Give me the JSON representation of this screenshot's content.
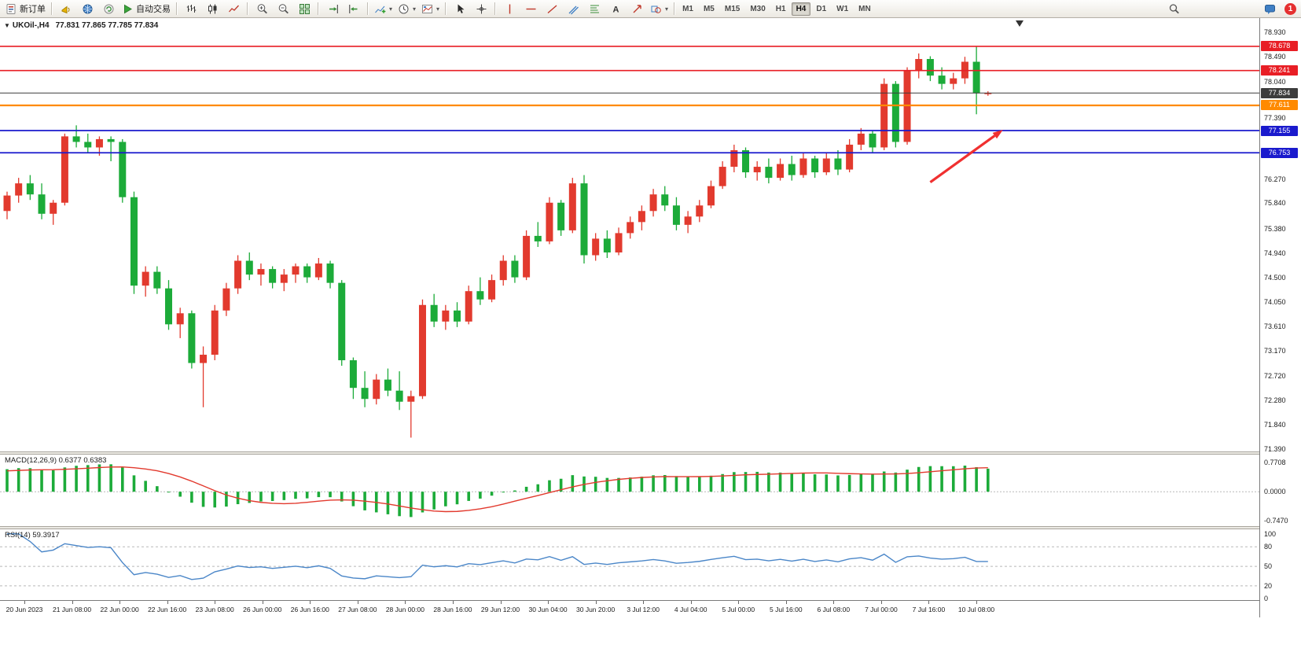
{
  "toolbar": {
    "left_items": [
      {
        "name": "new-order-button",
        "icon": "new-order",
        "label": "新订单"
      },
      {
        "name": "separator"
      },
      {
        "name": "megaphone-icon",
        "icon": "megaphone"
      },
      {
        "name": "community-icon",
        "icon": "globe"
      },
      {
        "name": "refresh-icon",
        "icon": "refresh"
      },
      {
        "name": "autotrading-button",
        "icon": "autotrading",
        "label": "自动交易"
      },
      {
        "name": "separator"
      },
      {
        "name": "bar-chart-button",
        "icon": "bar-chart"
      },
      {
        "name": "candlestick-chart-button",
        "icon": "candlestick"
      },
      {
        "name": "line-chart-button",
        "icon": "line-chart"
      },
      {
        "name": "separator"
      },
      {
        "name": "zoom-in-button",
        "icon": "zoom-in"
      },
      {
        "name": "zoom-out-button",
        "icon": "zoom-out"
      },
      {
        "name": "tile-windows-button",
        "icon": "tile-windows"
      },
      {
        "name": "separator"
      },
      {
        "name": "auto-scroll-button",
        "icon": "auto-scroll"
      },
      {
        "name": "chart-shift-button",
        "icon": "chart-shift"
      },
      {
        "name": "separator"
      },
      {
        "name": "indicators-button",
        "icon": "indicators",
        "dropdown": true
      },
      {
        "name": "periods-button",
        "icon": "periods",
        "dropdown": true
      },
      {
        "name": "templates-button",
        "icon": "templates",
        "dropdown": true
      },
      {
        "name": "separator"
      },
      {
        "name": "cursor-button",
        "icon": "cursor"
      },
      {
        "name": "crosshair-button",
        "icon": "crosshair"
      },
      {
        "name": "separator"
      },
      {
        "name": "vertical-line-button",
        "icon": "vline"
      },
      {
        "name": "horizontal-line-button",
        "icon": "hline"
      },
      {
        "name": "trendline-button",
        "icon": "trendline"
      },
      {
        "name": "channel-button",
        "icon": "channel"
      },
      {
        "name": "fibonacci-button",
        "icon": "fibonacci"
      },
      {
        "name": "text-button",
        "icon": "text-label"
      },
      {
        "name": "arrows-button",
        "icon": "arrows"
      },
      {
        "name": "shapes-button",
        "icon": "shapes",
        "dropdown": true
      },
      {
        "name": "separator"
      }
    ],
    "timeframes": [
      "M1",
      "M5",
      "M15",
      "M30",
      "H1",
      "H4",
      "D1",
      "W1",
      "MN"
    ],
    "active_timeframe": "H4",
    "right_items": [
      {
        "name": "search-button",
        "icon": "search"
      },
      {
        "name": "chat-button",
        "icon": "chat"
      }
    ],
    "notification_count": "1"
  },
  "chart": {
    "symbol_label": "UKOil-,H4",
    "ohlc_text": "77.831 77.865 77.785 77.834"
  },
  "macd": {
    "label": "MACD(12,26,9) 0.6377 0.6383",
    "axis": [
      {
        "v": 0.7708,
        "t": "0.7708"
      },
      {
        "v": 0,
        "t": "0.0000"
      },
      {
        "v": -0.747,
        "t": "-0.7470"
      }
    ]
  },
  "rsi": {
    "label": "RSI(14) 59.3917",
    "axis": [
      {
        "v": 100,
        "t": "100"
      },
      {
        "v": 80,
        "t": "80"
      },
      {
        "v": 50,
        "t": "50"
      },
      {
        "v": 20,
        "t": "20"
      },
      {
        "v": 0,
        "t": "0"
      }
    ],
    "levels": [
      80,
      50,
      20
    ]
  },
  "chart_data": {
    "type": "candlestick",
    "symbol": "UKOil-",
    "timeframe": "H4",
    "current_ohlc": {
      "open": 77.831,
      "high": 77.865,
      "low": 77.785,
      "close": 77.834
    },
    "up_color": "#e23a2e",
    "down_color": "#1cab39",
    "price_ylim": [
      71.35,
      79.19
    ],
    "macd_ylim": [
      -0.9,
      0.97
    ],
    "rsi_ylim": [
      -2,
      107
    ],
    "y_axis_labels": [
      "78.930",
      "78.490",
      "78.040",
      "77.390",
      "76.270",
      "75.840",
      "75.380",
      "74.940",
      "74.500",
      "74.050",
      "73.610",
      "73.170",
      "72.720",
      "72.280",
      "71.840",
      "71.390"
    ],
    "x_labels": [
      "20 Jun 2023",
      "21 Jun 08:00",
      "22 Jun 00:00",
      "22 Jun 16:00",
      "23 Jun 08:00",
      "26 Jun 00:00",
      "26 Jun 16:00",
      "27 Jun 08:00",
      "28 Jun 00:00",
      "28 Jun 16:00",
      "29 Jun 12:00",
      "30 Jun 04:00",
      "30 Jun 20:00",
      "3 Jul 12:00",
      "4 Jul 04:00",
      "5 Jul 00:00",
      "5 Jul 16:00",
      "6 Jul 08:00",
      "7 Jul 00:00",
      "7 Jul 16:00",
      "10 Jul 08:00"
    ],
    "levels": [
      {
        "price": 78.678,
        "label": "78.678",
        "color": "#e81e25",
        "width": 1.6
      },
      {
        "price": 78.241,
        "label": "78.241",
        "color": "#e81e25",
        "width": 1.6
      },
      {
        "price": 77.834,
        "label": "77.834",
        "color": "#3c3c3c",
        "width": 1,
        "current": true
      },
      {
        "price": 77.611,
        "label": "77.611",
        "color": "#ff8a00",
        "width": 2.2
      },
      {
        "price": 77.155,
        "label": "77.155",
        "color": "#1a1acd",
        "width": 1.8
      },
      {
        "price": 76.753,
        "label": "76.753",
        "color": "#1a1acd",
        "width": 1.8
      }
    ],
    "candles": [
      [
        75.7,
        76.05,
        75.55,
        75.98
      ],
      [
        75.98,
        76.3,
        75.85,
        76.2
      ],
      [
        76.2,
        76.35,
        75.9,
        76.0
      ],
      [
        76.0,
        76.2,
        75.55,
        75.65
      ],
      [
        75.65,
        75.9,
        75.45,
        75.85
      ],
      [
        75.85,
        77.1,
        75.8,
        77.05
      ],
      [
        77.05,
        77.25,
        76.85,
        76.95
      ],
      [
        76.95,
        77.1,
        76.75,
        76.85
      ],
      [
        76.85,
        77.05,
        76.7,
        77.0
      ],
      [
        77.0,
        77.05,
        76.6,
        76.95
      ],
      [
        76.95,
        77.0,
        75.85,
        75.95
      ],
      [
        75.95,
        76.05,
        74.2,
        74.35
      ],
      [
        74.35,
        74.7,
        74.15,
        74.6
      ],
      [
        74.6,
        74.7,
        74.2,
        74.3
      ],
      [
        74.3,
        74.45,
        73.55,
        73.65
      ],
      [
        73.65,
        73.95,
        73.4,
        73.85
      ],
      [
        73.85,
        73.9,
        72.85,
        72.95
      ],
      [
        72.95,
        73.25,
        72.15,
        73.1
      ],
      [
        73.1,
        74.0,
        73.0,
        73.9
      ],
      [
        73.9,
        74.4,
        73.8,
        74.3
      ],
      [
        74.3,
        74.9,
        74.2,
        74.8
      ],
      [
        74.8,
        74.95,
        74.45,
        74.55
      ],
      [
        74.55,
        74.75,
        74.35,
        74.65
      ],
      [
        74.65,
        74.7,
        74.3,
        74.4
      ],
      [
        74.4,
        74.65,
        74.25,
        74.55
      ],
      [
        74.55,
        74.75,
        74.4,
        74.7
      ],
      [
        74.7,
        74.75,
        74.4,
        74.5
      ],
      [
        74.5,
        74.85,
        74.45,
        74.75
      ],
      [
        74.75,
        74.8,
        74.3,
        74.4
      ],
      [
        74.4,
        74.45,
        72.9,
        73.0
      ],
      [
        73.0,
        73.05,
        72.3,
        72.5
      ],
      [
        72.5,
        72.8,
        72.15,
        72.3
      ],
      [
        72.3,
        72.75,
        72.2,
        72.65
      ],
      [
        72.65,
        72.85,
        72.35,
        72.45
      ],
      [
        72.45,
        72.8,
        72.1,
        72.25
      ],
      [
        72.25,
        72.45,
        71.6,
        72.35
      ],
      [
        72.35,
        74.1,
        72.3,
        74.0
      ],
      [
        74.0,
        74.2,
        73.6,
        73.7
      ],
      [
        73.7,
        74.0,
        73.55,
        73.9
      ],
      [
        73.9,
        74.05,
        73.6,
        73.7
      ],
      [
        73.7,
        74.35,
        73.65,
        74.25
      ],
      [
        74.25,
        74.5,
        74.0,
        74.1
      ],
      [
        74.1,
        74.55,
        74.05,
        74.45
      ],
      [
        74.45,
        74.9,
        74.35,
        74.8
      ],
      [
        74.8,
        74.9,
        74.4,
        74.5
      ],
      [
        74.5,
        75.35,
        74.45,
        75.25
      ],
      [
        75.25,
        75.5,
        75.05,
        75.15
      ],
      [
        75.15,
        75.95,
        75.1,
        75.85
      ],
      [
        75.85,
        75.9,
        75.25,
        75.35
      ],
      [
        75.35,
        76.3,
        75.3,
        76.2
      ],
      [
        76.2,
        76.35,
        74.75,
        74.9
      ],
      [
        74.9,
        75.3,
        74.8,
        75.2
      ],
      [
        75.2,
        75.35,
        74.85,
        74.95
      ],
      [
        74.95,
        75.4,
        74.9,
        75.3
      ],
      [
        75.3,
        75.6,
        75.2,
        75.5
      ],
      [
        75.5,
        75.8,
        75.35,
        75.7
      ],
      [
        75.7,
        76.1,
        75.6,
        76.0
      ],
      [
        76.0,
        76.15,
        75.7,
        75.8
      ],
      [
        75.8,
        75.95,
        75.35,
        75.45
      ],
      [
        75.45,
        75.7,
        75.3,
        75.6
      ],
      [
        75.6,
        75.9,
        75.5,
        75.8
      ],
      [
        75.8,
        76.25,
        75.75,
        76.15
      ],
      [
        76.15,
        76.6,
        76.1,
        76.5
      ],
      [
        76.5,
        76.9,
        76.4,
        76.8
      ],
      [
        76.8,
        76.85,
        76.3,
        76.4
      ],
      [
        76.4,
        76.6,
        76.25,
        76.5
      ],
      [
        76.5,
        76.65,
        76.2,
        76.3
      ],
      [
        76.3,
        76.65,
        76.25,
        76.55
      ],
      [
        76.55,
        76.7,
        76.25,
        76.35
      ],
      [
        76.35,
        76.75,
        76.3,
        76.65
      ],
      [
        76.65,
        76.7,
        76.3,
        76.4
      ],
      [
        76.4,
        76.75,
        76.35,
        76.65
      ],
      [
        76.65,
        76.8,
        76.35,
        76.45
      ],
      [
        76.45,
        77.0,
        76.4,
        76.9
      ],
      [
        76.9,
        77.2,
        76.8,
        77.1
      ],
      [
        77.1,
        77.15,
        76.75,
        76.85
      ],
      [
        76.85,
        78.1,
        76.8,
        78.0
      ],
      [
        78.0,
        78.05,
        76.85,
        76.95
      ],
      [
        76.95,
        78.3,
        76.9,
        78.25
      ],
      [
        78.25,
        78.55,
        78.1,
        78.45
      ],
      [
        78.45,
        78.5,
        78.05,
        78.15
      ],
      [
        78.15,
        78.3,
        77.9,
        78.0
      ],
      [
        78.0,
        78.2,
        77.9,
        78.1
      ],
      [
        78.1,
        78.49,
        78.0,
        78.4
      ],
      [
        78.4,
        78.68,
        77.45,
        77.83
      ],
      [
        77.831,
        77.865,
        77.785,
        77.834
      ]
    ],
    "indicators": [
      {
        "type": "MACD",
        "params": [
          12,
          26,
          9
        ],
        "values": [
          0.6377,
          0.6383
        ],
        "histogram_color": "#1cab39",
        "signal_color": "#e23a2e"
      },
      {
        "type": "RSI",
        "period": 14,
        "value": 59.3917,
        "color": "#4a86c8"
      }
    ],
    "annotations": [
      {
        "type": "arrow",
        "color": "#f03030",
        "x1_index": 80,
        "y1_price": 76.22,
        "x2_index": 86.3,
        "y2_price": 77.17
      }
    ]
  }
}
